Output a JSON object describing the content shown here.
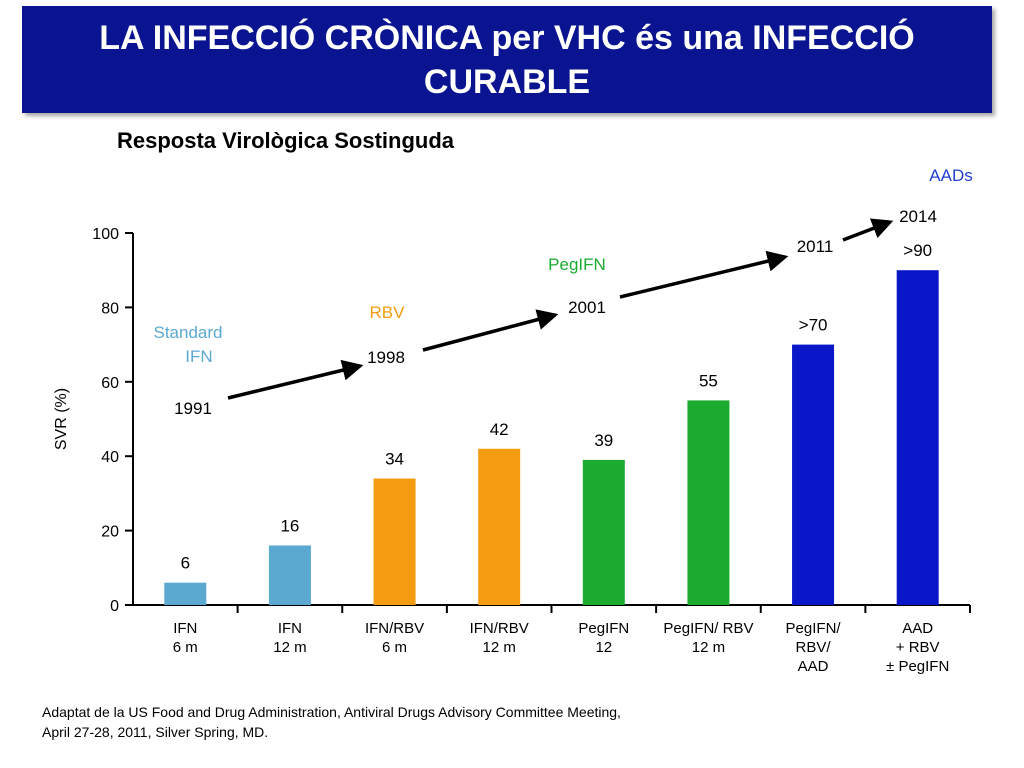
{
  "header": {
    "title": "LA INFECCIÓ CRÒNICA per VHC és una INFECCIÓ CURABLE",
    "subtitle": "Resposta Virològica Sostinguda"
  },
  "chart_data": {
    "type": "bar",
    "title": "Resposta Virològica Sostinguda",
    "ylabel": "SVR (%)",
    "xlabel": "",
    "ylim": [
      0,
      100
    ],
    "yticks": [
      0,
      20,
      40,
      60,
      80,
      100
    ],
    "grid": false,
    "categories": [
      [
        "IFN",
        "6 m"
      ],
      [
        "IFN",
        "12 m"
      ],
      [
        "IFN/RBV",
        "6 m"
      ],
      [
        "IFN/RBV",
        "12 m"
      ],
      [
        "PegIFN",
        "12"
      ],
      [
        "PegIFN/ RBV",
        "12 m"
      ],
      [
        "PegIFN/",
        "RBV/",
        "AAD"
      ],
      [
        "AAD",
        "+ RBV",
        "± PegIFN"
      ]
    ],
    "values": [
      6,
      16,
      34,
      42,
      39,
      55,
      70,
      90
    ],
    "data_labels": [
      "6",
      "16",
      "34",
      "42",
      "39",
      "55",
      ">70",
      ">90"
    ],
    "bar_colors": [
      "#5ba9d1",
      "#5ba9d1",
      "#f39c12",
      "#f39c12",
      "#1aab2f",
      "#1aab2f",
      "#0a17c8",
      "#0a17c8"
    ],
    "eras": [
      {
        "label": "Standard IFN",
        "color": "#5ba9d1"
      },
      {
        "label": "RBV",
        "color": "#f39c12"
      },
      {
        "label": "PegIFN",
        "color": "#1aab2f"
      },
      {
        "label": "AADs",
        "color": "#1f3fd1"
      }
    ],
    "years": [
      "1991",
      "1998",
      "2001",
      "2011",
      "2014"
    ]
  },
  "footnote": {
    "line1": "Adaptat de la US Food and Drug Administration, Antiviral Drugs Advisory Committee Meeting,",
    "line2": "April 27-28, 2011, Silver Spring, MD."
  }
}
